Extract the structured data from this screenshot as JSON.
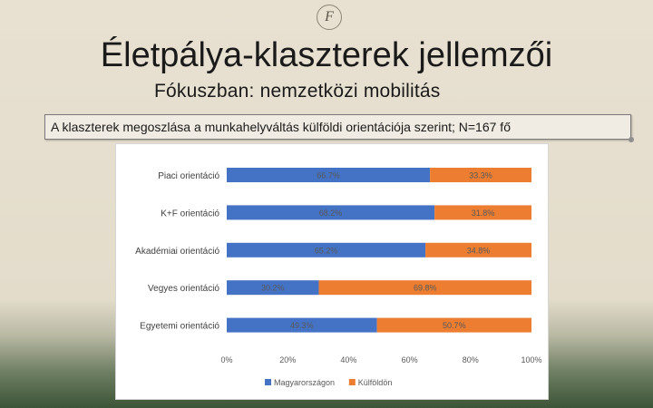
{
  "slide": {
    "logo_glyph": "F",
    "title": "Életpálya-klaszterek jellemzői",
    "subtitle": "Fókuszban: nemzetközi mobilitás",
    "caption": "A klaszterek megoszlása a munkahelyváltás külföldi orientációja szerint; N=167 fő"
  },
  "chart_data": {
    "type": "bar",
    "orientation": "horizontal",
    "stacked": true,
    "percent": true,
    "categories": [
      "Piaci orientáció",
      "K+F orientáció",
      "Akadémiai orientáció",
      "Vegyes orientáció",
      "Egyetemi orientáció"
    ],
    "series": [
      {
        "name": "Magyarországon",
        "color": "#4472c4",
        "values": [
          66.7,
          68.2,
          65.2,
          30.2,
          49.3
        ],
        "labels": [
          "66.7%",
          "68.2%",
          "65.2%",
          "30.2%",
          "49.3%"
        ]
      },
      {
        "name": "Külföldön",
        "color": "#ed7d31",
        "values": [
          33.3,
          31.8,
          34.8,
          69.8,
          50.7
        ],
        "labels": [
          "33.3%",
          "31.8%",
          "34.8%",
          "69.8%",
          "50.7%"
        ]
      }
    ],
    "xlim": [
      0,
      100
    ],
    "xticks": [
      "0%",
      "20%",
      "40%",
      "60%",
      "80%",
      "100%"
    ],
    "legend": "bottom",
    "grid": false
  }
}
